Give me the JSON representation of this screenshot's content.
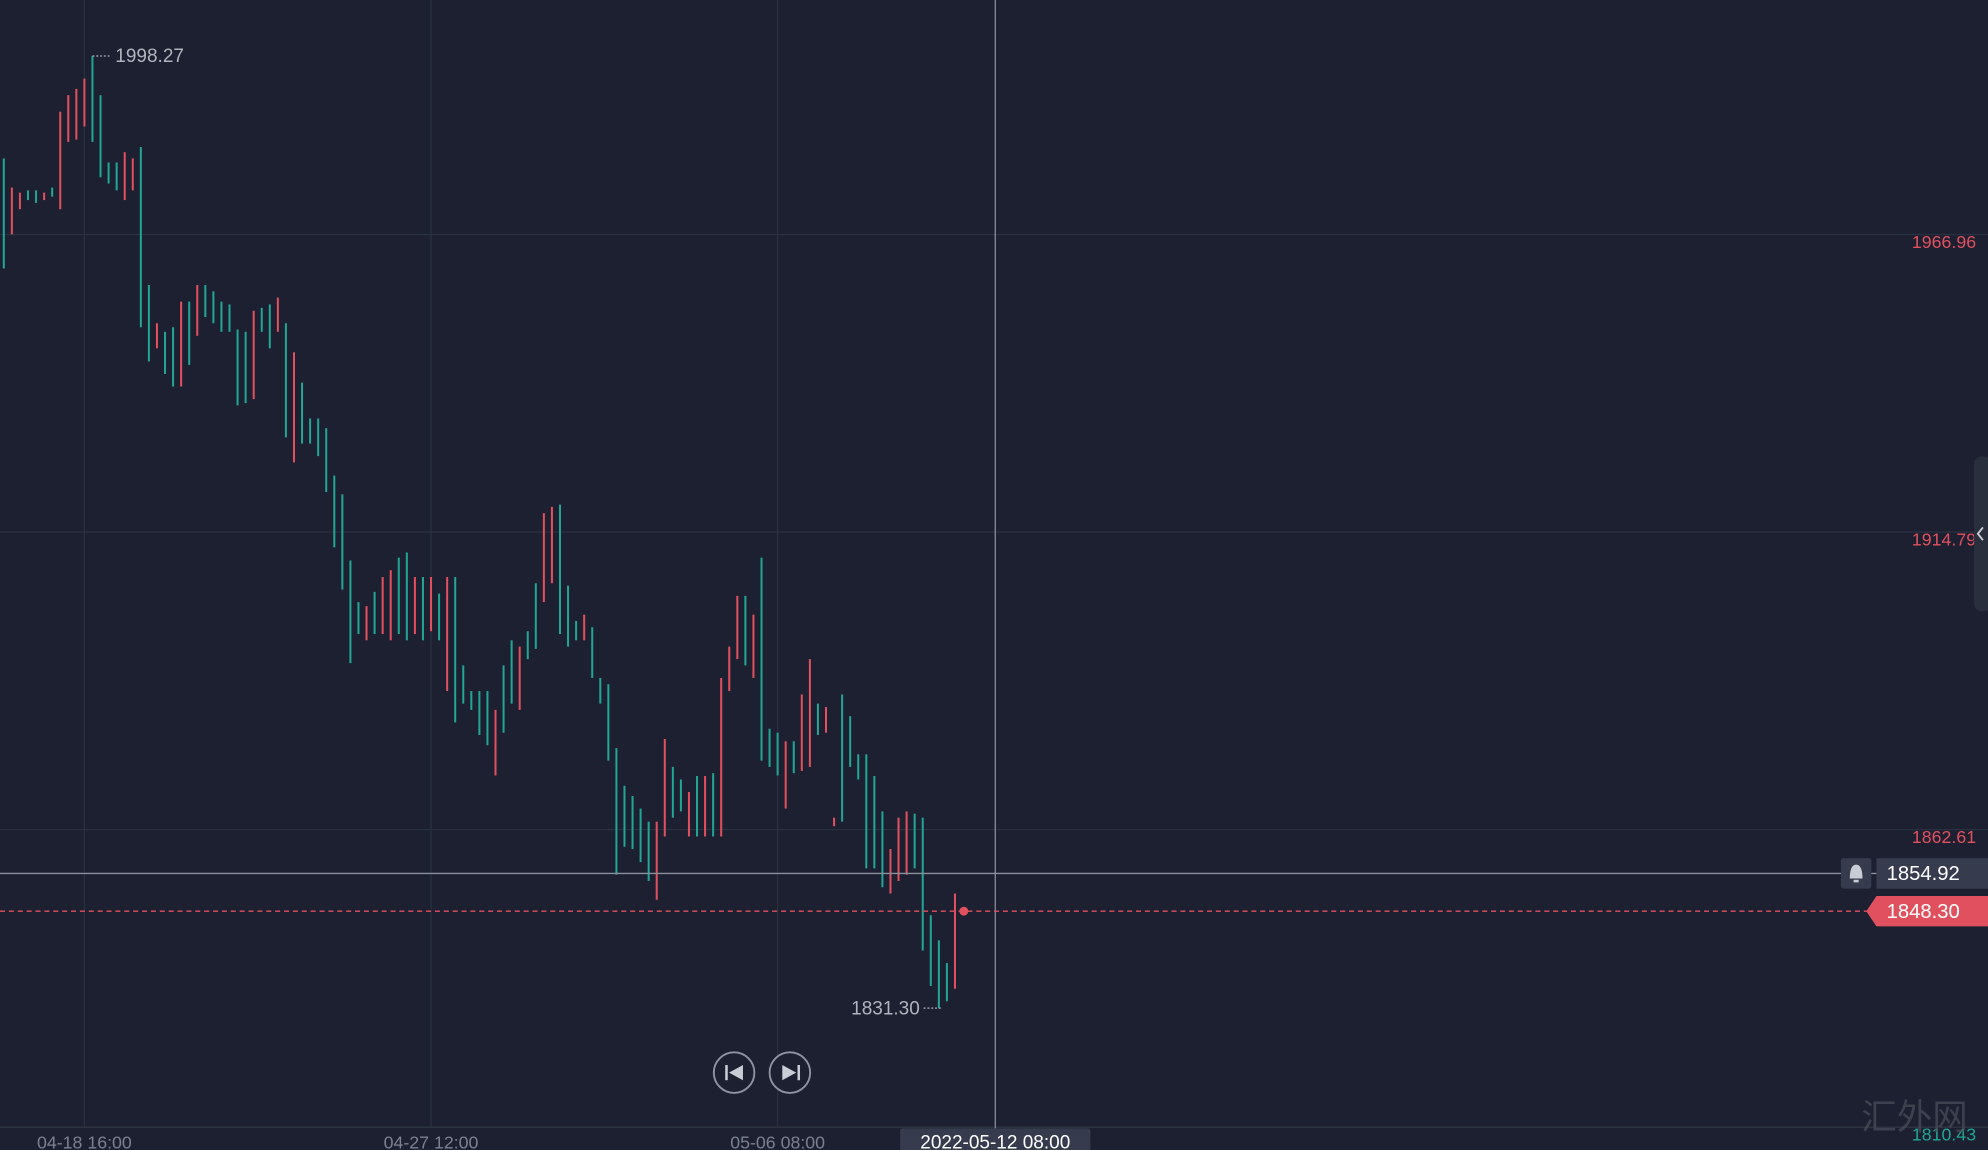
{
  "chart_data": {
    "type": "ohlc",
    "categories": [
      null,
      null,
      null,
      null,
      null,
      null,
      null,
      null,
      null,
      null,
      "04-18 16:00",
      null,
      null,
      null,
      null,
      null,
      null,
      null,
      null,
      null,
      null,
      null,
      null,
      null,
      null,
      null,
      null,
      null,
      null,
      null,
      null,
      null,
      null,
      null,
      null,
      null,
      null,
      null,
      null,
      null,
      null,
      null,
      null,
      null,
      null,
      null,
      null,
      null,
      null,
      null,
      null,
      null,
      null,
      "04-27 12:00",
      null,
      null,
      null,
      null,
      null,
      null,
      null,
      null,
      null,
      null,
      null,
      null,
      null,
      null,
      null,
      null,
      null,
      null,
      null,
      null,
      null,
      null,
      null,
      null,
      null,
      null,
      null,
      null,
      null,
      null,
      null,
      null,
      null,
      null,
      null,
      null,
      null,
      null,
      null,
      null,
      null,
      null,
      "05-06 08:00",
      null,
      null,
      null,
      null,
      null,
      null,
      null,
      null,
      null,
      null,
      null,
      null,
      null,
      null,
      null,
      null,
      null,
      null,
      null,
      null,
      null,
      null,
      null,
      null,
      null,
      null,
      "2022-05-12 08:00"
    ],
    "high": [
      1980.3,
      1975.2,
      1974.3,
      1974.7,
      1974.7,
      1974.3,
      1975.2,
      1988.5,
      1991.4,
      1992.5,
      1994.3,
      1998.27,
      1991.4,
      1979.6,
      1979.6,
      1981.4,
      1980.3,
      1982.3,
      1958.1,
      1951.4,
      1949.9,
      1950.7,
      1955.2,
      1955.2,
      1958.1,
      1958.1,
      1957.0,
      1955.2,
      1954.7,
      1950.3,
      1949.9,
      1953.6,
      1954.1,
      1954.7,
      1955.9,
      1951.4,
      1946.3,
      1941.0,
      1934.7,
      1934.7,
      1933.0,
      1924.7,
      1921.4,
      1909.8,
      1902.5,
      1901.8,
      1904.3,
      1906.9,
      1908.1,
      1910.3,
      1911.2,
      1906.9,
      1906.9,
      1906.9,
      1904.0,
      1906.9,
      1906.9,
      1891.4,
      1886.9,
      1886.9,
      1886.9,
      1883.6,
      1891.4,
      1895.8,
      1894.7,
      1897.4,
      1905.8,
      1918.1,
      1919.2,
      1919.6,
      1905.4,
      1899.2,
      1900.3,
      1898.1,
      1889.2,
      1888.1,
      1876.9,
      1870.3,
      1868.5,
      1866.3,
      1864.0,
      1864.0,
      1878.5,
      1873.6,
      1871.4,
      1869.2,
      1872.0,
      1872.0,
      1872.5,
      1889.2,
      1894.7,
      1903.6,
      1903.6,
      1900.3,
      1910.3,
      1880.3,
      1879.6,
      1878.1,
      1878.1,
      1886.3,
      1892.5,
      1884.7,
      1884.1,
      1864.7,
      1886.3,
      1882.5,
      1875.8,
      1875.8,
      1872.0,
      1865.8,
      1859.2,
      1864.7,
      1865.8,
      1865.4,
      1864.7,
      1847.6,
      1843.2,
      1839.2,
      1851.4,
      null,
      null,
      null,
      null,
      null
    ],
    "low": [
      1961.0,
      1967.0,
      1971.4,
      1973.0,
      1972.5,
      1973.0,
      1973.6,
      1971.4,
      1983.2,
      1983.6,
      1985.9,
      1983.2,
      1977.0,
      1975.9,
      1974.7,
      1973.0,
      1974.7,
      1950.7,
      1944.7,
      1947.0,
      1942.5,
      1940.3,
      1940.3,
      1944.1,
      1949.2,
      1952.5,
      1951.4,
      1949.9,
      1949.9,
      1937.0,
      1937.4,
      1938.1,
      1949.9,
      1947.0,
      1949.9,
      1931.4,
      1927.0,
      1930.3,
      1930.3,
      1928.1,
      1921.8,
      1912.1,
      1904.7,
      1891.8,
      1896.9,
      1895.8,
      1896.9,
      1896.9,
      1895.8,
      1896.9,
      1895.8,
      1896.9,
      1895.8,
      1897.4,
      1895.8,
      1886.9,
      1881.4,
      1884.7,
      1883.6,
      1879.2,
      1877.4,
      1872.1,
      1879.6,
      1884.7,
      1883.6,
      1892.5,
      1894.3,
      1902.5,
      1905.8,
      1896.9,
      1894.7,
      1895.8,
      1895.8,
      1889.2,
      1884.7,
      1874.7,
      1854.7,
      1859.6,
      1859.2,
      1856.9,
      1853.6,
      1850.3,
      1861.4,
      1864.7,
      1865.8,
      1861.4,
      1861.4,
      1861.4,
      1861.4,
      1861.4,
      1886.9,
      1892.5,
      1891.4,
      1889.2,
      1874.7,
      1873.6,
      1872.1,
      1866.3,
      1872.5,
      1872.9,
      1873.6,
      1879.2,
      1879.6,
      1863.2,
      1864.0,
      1873.6,
      1871.4,
      1855.8,
      1855.8,
      1852.5,
      1851.4,
      1853.6,
      1854.7,
      1855.8,
      1841.4,
      1835.2,
      1831.3,
      1832.5,
      1834.7,
      null,
      null,
      null,
      null,
      null
    ],
    "rising": [
      true,
      false,
      false,
      true,
      true,
      false,
      true,
      false,
      false,
      false,
      false,
      true,
      true,
      true,
      true,
      false,
      false,
      true,
      true,
      false,
      true,
      true,
      false,
      true,
      false,
      true,
      true,
      true,
      true,
      true,
      true,
      false,
      true,
      true,
      false,
      true,
      false,
      true,
      true,
      true,
      true,
      true,
      true,
      true,
      true,
      false,
      true,
      false,
      false,
      true,
      true,
      false,
      true,
      false,
      true,
      false,
      true,
      true,
      true,
      true,
      true,
      false,
      true,
      true,
      false,
      true,
      true,
      false,
      false,
      true,
      true,
      true,
      false,
      true,
      true,
      true,
      true,
      true,
      true,
      true,
      true,
      false,
      false,
      true,
      true,
      false,
      true,
      false,
      true,
      false,
      false,
      false,
      true,
      false,
      true,
      true,
      true,
      false,
      true,
      false,
      false,
      true,
      false,
      false,
      true,
      true,
      true,
      true,
      true,
      true,
      false,
      false,
      false,
      true,
      true,
      true,
      true,
      true,
      false,
      null,
      null,
      null,
      null,
      null
    ],
    "up_color": "#22a594",
    "down_color": "#e0505f",
    "ylim": [
      1810.43,
      2008.08
    ],
    "yticks": [
      1966.96,
      1914.79,
      1862.61,
      1810.43
    ],
    "ytick_colors": [
      "#e0505f",
      "#e0505f",
      "#e0505f",
      "#22a594"
    ],
    "grid": true,
    "crosshair_price": 1854.92,
    "last_price": {
      "value": 1848.3,
      "label": "1848.30"
    },
    "max_label": 1998.27,
    "min_label": {
      "value": 1831.3,
      "label": "1831.30"
    },
    "watermark": "汇外网"
  }
}
